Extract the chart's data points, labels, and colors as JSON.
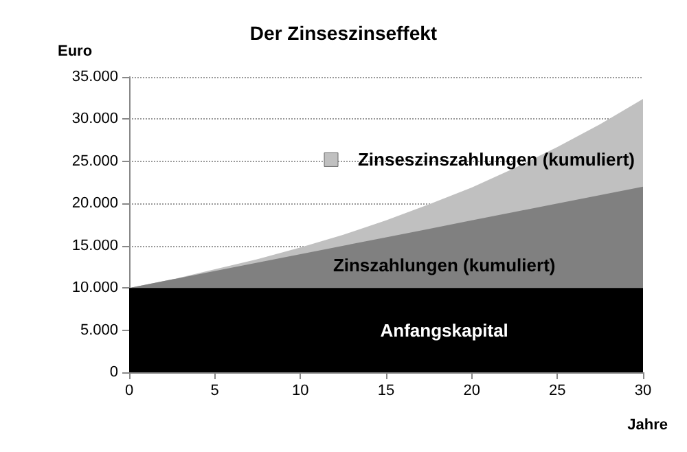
{
  "chart_data": {
    "type": "area",
    "title": "Der Zinseszinseffekt",
    "xlabel": "Jahre",
    "ylabel": "Euro",
    "stacked": true,
    "grid": "y",
    "x": [
      0,
      2.5,
      5,
      7.5,
      10,
      12.5,
      15,
      17.5,
      20,
      22.5,
      25,
      27.5,
      30
    ],
    "series": [
      {
        "name": "Anfangskapital",
        "color": "#000000",
        "values": [
          10000,
          10000,
          10000,
          10000,
          10000,
          10000,
          10000,
          10000,
          10000,
          10000,
          10000,
          10000,
          10000
        ]
      },
      {
        "name": "Zinszahlungen (kumuliert)",
        "color": "#808080",
        "values": [
          0,
          1000,
          2000,
          3000,
          4000,
          5000,
          6000,
          7000,
          8000,
          9000,
          10000,
          11000,
          12000
        ]
      },
      {
        "name": "Zinseszinszahlungen (kumuliert)",
        "color": "#c0c0c0",
        "values": [
          0,
          0,
          200,
          400,
          800,
          1300,
          2000,
          2900,
          3900,
          5200,
          6700,
          8400,
          10400
        ]
      }
    ],
    "xlim": [
      0,
      30
    ],
    "xticks": [
      0,
      5,
      10,
      15,
      20,
      25,
      30
    ],
    "ylim": [
      0,
      35000
    ],
    "yticks": [
      {
        "value": 0,
        "label": "0"
      },
      {
        "value": 5000,
        "label": "5.000"
      },
      {
        "value": 10000,
        "label": "10.000"
      },
      {
        "value": 15000,
        "label": "15.000"
      },
      {
        "value": 20000,
        "label": "20.000"
      },
      {
        "value": 25000,
        "label": "25.000"
      },
      {
        "value": 30000,
        "label": "30.000"
      },
      {
        "value": 35000,
        "label": "35.000"
      }
    ]
  }
}
